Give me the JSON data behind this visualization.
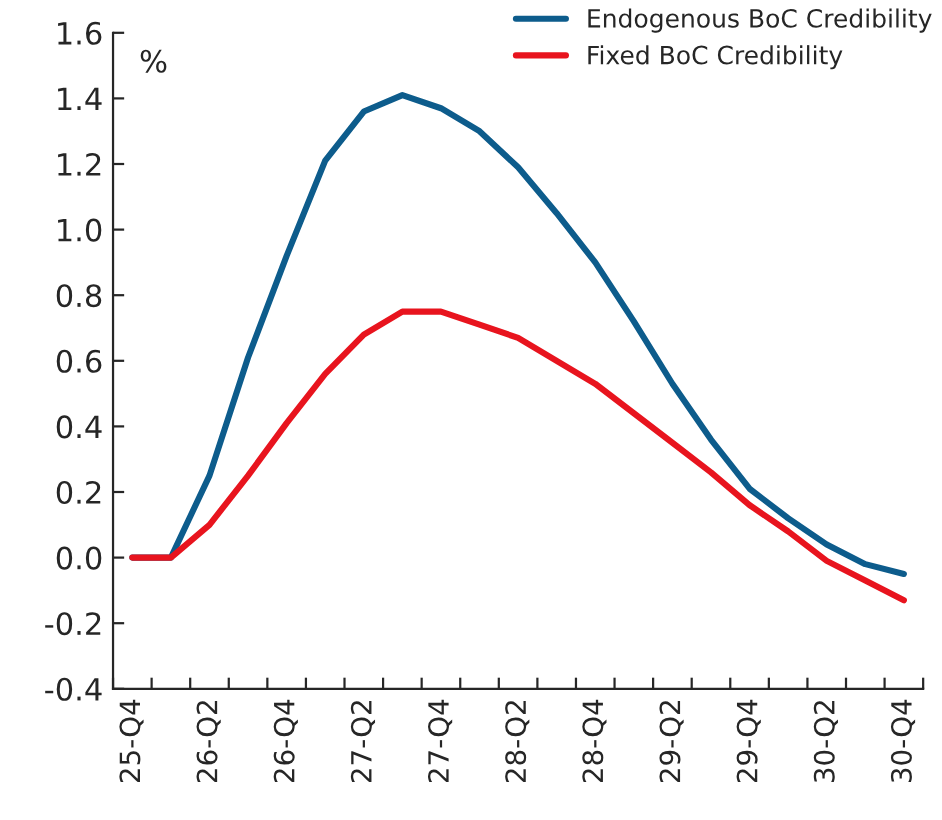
{
  "chart_data": {
    "type": "line",
    "ylabel": "%",
    "categories": [
      "25-Q4",
      null,
      "26-Q2",
      null,
      "26-Q4",
      null,
      "27-Q2",
      null,
      "27-Q4",
      null,
      "28-Q2",
      null,
      "28-Q4",
      null,
      "29-Q2",
      null,
      "29-Q4",
      null,
      "30-Q2",
      null,
      "30-Q4"
    ],
    "series": [
      {
        "name": "Endogenous BoC Credibility",
        "color": "#0d5c8c",
        "values": [
          0,
          0,
          0.25,
          0.61,
          0.92,
          1.21,
          1.36,
          1.41,
          1.37,
          1.3,
          1.19,
          1.05,
          0.9,
          0.72,
          0.53,
          0.36,
          0.21,
          0.12,
          0.04,
          -0.02,
          -0.05
        ]
      },
      {
        "name": "Fixed BoC Credibility",
        "color": "#e8141e",
        "values": [
          0,
          0,
          0.1,
          0.25,
          0.41,
          0.56,
          0.68,
          0.75,
          0.75,
          0.71,
          0.67,
          0.6,
          0.53,
          0.44,
          0.35,
          0.26,
          0.16,
          0.08,
          -0.01,
          -0.07,
          -0.13
        ]
      }
    ],
    "ylim": [
      -0.4,
      1.6
    ],
    "yticks": [
      {
        "value": -0.4,
        "label": "-0.4"
      },
      {
        "value": -0.2,
        "label": "-0.2"
      },
      {
        "value": 0,
        "label": "0.0"
      },
      {
        "value": 0.2,
        "label": "0.2"
      },
      {
        "value": 0.4,
        "label": "0.4"
      },
      {
        "value": 0.6,
        "label": "0.6"
      },
      {
        "value": 0.8,
        "label": "0.8"
      },
      {
        "value": 1.0,
        "label": "1.0"
      },
      {
        "value": 1.2,
        "label": "1.2"
      },
      {
        "value": 1.4,
        "label": "1.4"
      },
      {
        "value": 1.6,
        "label": "1.6"
      }
    ],
    "grid": false,
    "legend": "top right",
    "marker": "none",
    "line_style": "solid"
  }
}
